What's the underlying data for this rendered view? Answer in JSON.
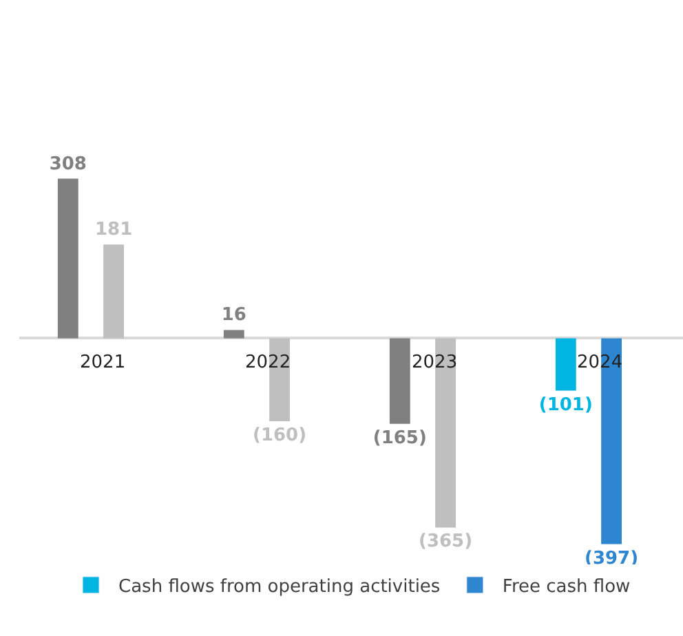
{
  "chart_data": {
    "type": "bar",
    "categories": [
      "2021",
      "2022",
      "2023",
      "2024"
    ],
    "series": [
      {
        "name": "Cash flows from operating activities",
        "color": "#00b5e2",
        "colors": [
          "#808080",
          "#808080",
          "#808080",
          "#00b5e2"
        ],
        "values": [
          308,
          16,
          -165,
          -101
        ],
        "value_labels": [
          "308",
          "16",
          "(165)",
          "(101)"
        ]
      },
      {
        "name": "Free cash flow",
        "color": "#2e86d1",
        "colors": [
          "#bfbfbf",
          "#bfbfbf",
          "#bfbfbf",
          "#2e86d1"
        ],
        "values": [
          181,
          -160,
          -365,
          -397
        ],
        "value_labels": [
          "181",
          "(160)",
          "(365)",
          "(397)"
        ]
      }
    ],
    "legend": "bottom"
  }
}
